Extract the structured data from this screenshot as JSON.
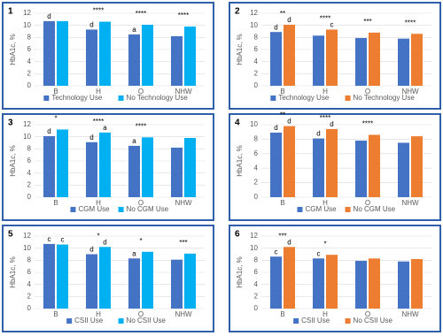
{
  "chart_data": [
    {
      "type": "bar",
      "panel": "1",
      "y_label": "HbA1c, %",
      "categories": [
        "B",
        "H",
        "O",
        "NHW"
      ],
      "ylim": [
        0,
        12
      ],
      "yticks": [
        0,
        2,
        4,
        6,
        8,
        10,
        12
      ],
      "grid": true,
      "legend": "bottom",
      "stars": [
        null,
        "****",
        "****",
        "****"
      ],
      "series": [
        {
          "name": "Technology Use",
          "color": "#4472c4",
          "values": [
            10.7,
            9.3,
            8.5,
            8.2
          ],
          "letters": [
            "d",
            "d",
            "a",
            null
          ]
        },
        {
          "name": "No Technology Use",
          "color": "#00b0f0",
          "values": [
            10.7,
            10.6,
            10.1,
            9.8
          ],
          "letters": [
            null,
            null,
            null,
            null
          ]
        }
      ]
    },
    {
      "type": "bar",
      "panel": "2",
      "y_label": "HbA1c, %",
      "categories": [
        "B",
        "H",
        "O",
        "NHW"
      ],
      "ylim": [
        0,
        12
      ],
      "yticks": [
        0,
        2,
        4,
        6,
        8,
        10,
        12
      ],
      "grid": true,
      "legend": "bottom",
      "stars": [
        "**",
        "****",
        "***",
        "****"
      ],
      "series": [
        {
          "name": "Technology Use",
          "color": "#4472c4",
          "values": [
            8.9,
            8.3,
            7.9,
            7.8
          ],
          "letters": [
            "d",
            null,
            null,
            null
          ]
        },
        {
          "name": "No Technology Use",
          "color": "#ed7d31",
          "values": [
            10.1,
            9.3,
            8.8,
            8.6
          ],
          "letters": [
            "d",
            "c",
            null,
            null
          ]
        }
      ]
    },
    {
      "type": "bar",
      "panel": "3",
      "y_label": "HbA1c, %",
      "categories": [
        "B",
        "H",
        "O",
        "NHW"
      ],
      "ylim": [
        0,
        12
      ],
      "yticks": [
        0,
        2,
        4,
        6,
        8,
        10,
        12
      ],
      "grid": true,
      "legend": "bottom",
      "stars": [
        "*",
        "****",
        "****",
        null
      ],
      "series": [
        {
          "name": "CGM Use",
          "color": "#4472c4",
          "values": [
            10.1,
            9.1,
            8.5,
            8.2
          ],
          "letters": [
            "d",
            "d",
            "a",
            null
          ]
        },
        {
          "name": "No CGM Use",
          "color": "#00b0f0",
          "values": [
            11.2,
            10.7,
            9.9,
            9.8
          ],
          "letters": [
            null,
            "a",
            null,
            null
          ]
        }
      ]
    },
    {
      "type": "bar",
      "panel": "4",
      "y_label": "HbA1c, %",
      "categories": [
        "B",
        "H",
        "O",
        "NHW"
      ],
      "ylim": [
        0,
        10
      ],
      "yticks": [
        0,
        2,
        4,
        6,
        8,
        10
      ],
      "grid": true,
      "legend": "bottom",
      "stars": [
        "**",
        "****",
        "****",
        null
      ],
      "series": [
        {
          "name": "CGM Use",
          "color": "#4472c4",
          "values": [
            8.9,
            8.1,
            7.8,
            7.5
          ],
          "letters": [
            "d",
            "d",
            null,
            null
          ]
        },
        {
          "name": "No CGM Use",
          "color": "#ed7d31",
          "values": [
            9.8,
            9.4,
            8.6,
            8.4
          ],
          "letters": [
            "d",
            "d",
            null,
            null
          ]
        }
      ]
    },
    {
      "type": "bar",
      "panel": "5",
      "y_label": "HbA1c, %",
      "categories": [
        "B",
        "H",
        "O",
        "NHW"
      ],
      "ylim": [
        0,
        12
      ],
      "yticks": [
        0,
        2,
        4,
        6,
        8,
        10,
        12
      ],
      "grid": true,
      "legend": "bottom",
      "stars": [
        null,
        "*",
        "*",
        "***"
      ],
      "series": [
        {
          "name": "CSII Use",
          "color": "#4472c4",
          "values": [
            10.7,
            9.0,
            8.3,
            8.1
          ],
          "letters": [
            "c",
            "d",
            "a",
            null
          ]
        },
        {
          "name": "No CSII Use",
          "color": "#00b0f0",
          "values": [
            10.6,
            10.2,
            9.4,
            9.1
          ],
          "letters": [
            "c",
            "d",
            null,
            null
          ]
        }
      ]
    },
    {
      "type": "bar",
      "panel": "6",
      "y_label": "HbA1c, %",
      "categories": [
        "B",
        "H",
        "O",
        "NHW"
      ],
      "ylim": [
        0,
        12
      ],
      "yticks": [
        0,
        2,
        4,
        6,
        8,
        10,
        12
      ],
      "grid": true,
      "legend": "bottom",
      "stars": [
        "***",
        "*",
        null,
        null
      ],
      "series": [
        {
          "name": "CSII Use",
          "color": "#4472c4",
          "values": [
            8.6,
            8.3,
            7.9,
            7.8
          ],
          "letters": [
            "c",
            "c",
            null,
            null
          ]
        },
        {
          "name": "No CSII Use",
          "color": "#ed7d31",
          "values": [
            10.2,
            8.9,
            8.3,
            8.2
          ],
          "letters": [
            "d",
            null,
            null,
            null
          ]
        }
      ]
    }
  ]
}
